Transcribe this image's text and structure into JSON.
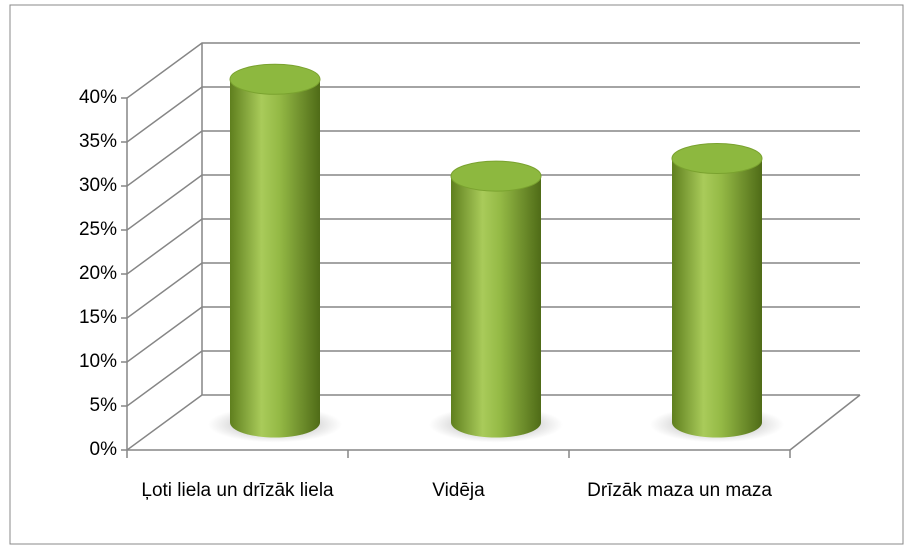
{
  "chart_data": {
    "type": "bar3d",
    "categories": [
      "Ļoti liela un drīzāk liela",
      "Vidēja",
      "Drīzāk maza un maza"
    ],
    "values": [
      39,
      28,
      30
    ],
    "color": "#8db83f",
    "ylim": [
      0,
      40
    ],
    "yticks": [
      {
        "value": 0,
        "label": "0%"
      },
      {
        "value": 5,
        "label": "5%"
      },
      {
        "value": 10,
        "label": "10%"
      },
      {
        "value": 15,
        "label": "15%"
      },
      {
        "value": 20,
        "label": "20%"
      },
      {
        "value": 25,
        "label": "25%"
      },
      {
        "value": 30,
        "label": "30%"
      },
      {
        "value": 35,
        "label": "35%"
      },
      {
        "value": 40,
        "label": "40%"
      }
    ],
    "grid": true
  }
}
